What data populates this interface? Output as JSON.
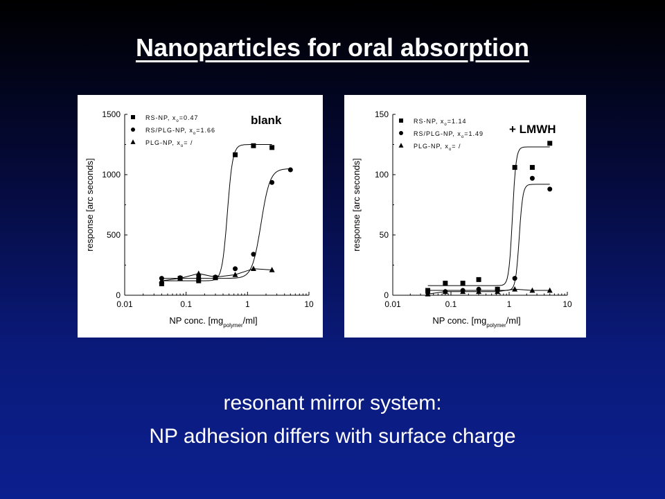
{
  "slide": {
    "title": "Nanoparticles for oral absorption",
    "caption_line1": "resonant mirror system:",
    "caption_line2": "NP adhesion differs with surface charge"
  },
  "colors": {
    "background_top": "#000000",
    "background_bottom": "#0c1f8e",
    "text": "#ffffff",
    "panel": "#ffffff",
    "ink": "#000000"
  },
  "chart_data": [
    {
      "type": "scatter",
      "annotation": "blank",
      "xlabel": "NP conc. [mg",
      "xlabel_sub": "polymer",
      "xlabel_end": "/ml]",
      "ylabel": "response [arc seconds]",
      "x_scale": "log",
      "xlim": [
        0.01,
        10
      ],
      "ylim": [
        0,
        1500
      ],
      "xticks": [
        "0.01",
        "0.1",
        "1",
        "10"
      ],
      "xtick_values": [
        0.01,
        0.1,
        1,
        10
      ],
      "yticks": [
        "0",
        "500",
        "1000",
        "1500"
      ],
      "ytick_values": [
        0,
        500,
        1000,
        1500
      ],
      "legend_position": "top-left",
      "series": [
        {
          "name": "RS-NP, x",
          "name_sub": "o",
          "name_end": "=0.47",
          "marker": "square",
          "x": [
            0.04,
            0.08,
            0.16,
            0.3,
            0.63,
            1.25,
            2.5
          ],
          "y": [
            95,
            140,
            120,
            145,
            1165,
            1240,
            1225
          ],
          "fit": {
            "bottom": 120,
            "top": 1250,
            "x0": 0.47,
            "slope": 10
          }
        },
        {
          "name": "RS/PLG-NP, x",
          "name_sub": "o",
          "name_end": "=1.66",
          "marker": "circle",
          "x": [
            0.04,
            0.08,
            0.16,
            0.3,
            0.63,
            1.25,
            2.5,
            5
          ],
          "y": [
            140,
            145,
            150,
            150,
            220,
            340,
            935,
            1040
          ],
          "fit": {
            "bottom": 140,
            "top": 1050,
            "x0": 1.66,
            "slope": 6
          }
        },
        {
          "name": "PLG-NP, x",
          "name_sub": "o",
          "name_end": "= /",
          "marker": "triangle",
          "x": [
            0.04,
            0.08,
            0.16,
            0.3,
            0.63,
            1.25,
            2.5
          ],
          "y": [
            120,
            140,
            180,
            150,
            170,
            220,
            210
          ]
        }
      ]
    },
    {
      "type": "scatter",
      "annotation": "+ LMWH",
      "xlabel": "NP conc. [mg",
      "xlabel_sub": "polymer",
      "xlabel_end": "/ml]",
      "ylabel": "response [arc seconds]",
      "x_scale": "log",
      "xlim": [
        0.01,
        10
      ],
      "ylim": [
        0,
        150
      ],
      "xticks": [
        "0.01",
        "0.1",
        "1",
        "10"
      ],
      "xtick_values": [
        0.01,
        0.1,
        1,
        10
      ],
      "yticks": [
        "0",
        "50",
        "100",
        "150"
      ],
      "ytick_values": [
        0,
        50,
        100,
        150
      ],
      "legend_position": "top-left",
      "series": [
        {
          "name": "RS-NP, x",
          "name_sub": "o",
          "name_end": "=1.14",
          "marker": "square",
          "x": [
            0.04,
            0.08,
            0.16,
            0.3,
            0.63,
            1.25,
            2.5,
            5
          ],
          "y": [
            4,
            10,
            10,
            13,
            5,
            106,
            106,
            126
          ],
          "fit": {
            "bottom": 8,
            "top": 123,
            "x0": 1.14,
            "slope": 14
          }
        },
        {
          "name": "RS/PLG-NP, x",
          "name_sub": "o",
          "name_end": "=1.49",
          "marker": "circle",
          "x": [
            0.04,
            0.08,
            0.16,
            0.3,
            0.63,
            1.25,
            2.5,
            5
          ],
          "y": [
            2,
            3,
            4,
            5,
            5,
            14,
            97,
            88
          ],
          "fit": {
            "bottom": 4,
            "top": 92,
            "x0": 1.49,
            "slope": 14
          }
        },
        {
          "name": "PLG-NP, x",
          "name_sub": "o",
          "name_end": "= /",
          "marker": "triangle",
          "x": [
            0.04,
            0.08,
            0.16,
            0.3,
            0.63,
            1.25,
            2.5,
            5
          ],
          "y": [
            1,
            3,
            3,
            3,
            3,
            5,
            4,
            4
          ]
        }
      ]
    }
  ]
}
